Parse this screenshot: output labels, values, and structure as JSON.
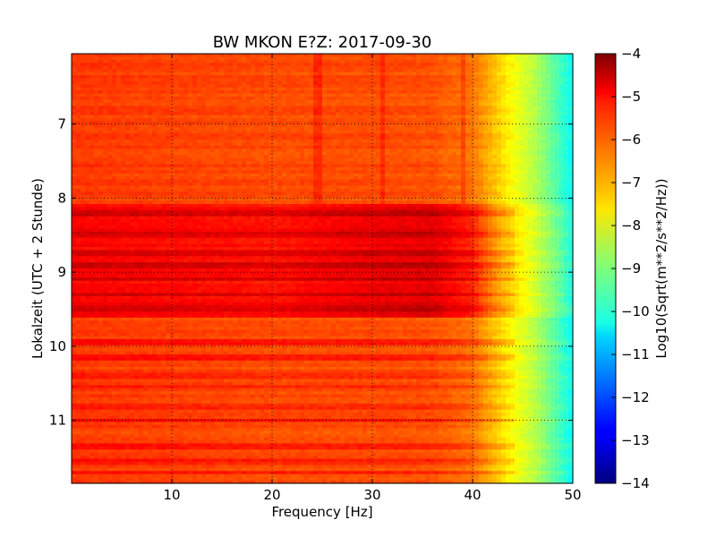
{
  "chart_data": {
    "type": "heatmap",
    "title": "BW MKON E?Z: 2017-09-30",
    "xlabel": "Frequency [Hz]",
    "ylabel": "Lokalzeit (UTC + 2 Stunde)",
    "xlim": [
      0,
      50
    ],
    "ylim": [
      6.05,
      11.85
    ],
    "y_inverted": true,
    "x_ticks": [
      10,
      20,
      30,
      40,
      50
    ],
    "x_tick_labels": [
      "10",
      "20",
      "30",
      "40",
      "50"
    ],
    "y_ticks": [
      7,
      8,
      9,
      10,
      11
    ],
    "y_tick_labels": [
      "7",
      "8",
      "9",
      "10",
      "11"
    ],
    "grid": true,
    "colormap": "jet",
    "colorbar": {
      "label": "Log10(Sqrt(m**2/s**2/Hz))",
      "range": [
        -14,
        -4
      ],
      "ticks": [
        -4,
        -5,
        -6,
        -7,
        -8,
        -9,
        -10,
        -11,
        -12,
        -13,
        -14
      ],
      "tick_labels": [
        "−4",
        "−5",
        "−6",
        "−7",
        "−8",
        "−9",
        "−10",
        "−11",
        "−12",
        "−13",
        "−14"
      ]
    },
    "frequency_profile": {
      "frequency_hz": [
        0,
        5,
        10,
        20,
        30,
        36,
        40,
        42,
        44,
        46,
        48,
        50
      ],
      "level_quiet": [
        -5.8,
        -5.85,
        -5.9,
        -6.0,
        -6.0,
        -6.05,
        -6.4,
        -7.1,
        -7.8,
        -8.4,
        -9.3,
        -10.2
      ],
      "level_active": [
        -5.2,
        -5.25,
        -5.3,
        -5.4,
        -5.1,
        -5.0,
        -5.6,
        -6.6,
        -7.4,
        -8.1,
        -9.0,
        -10.0
      ]
    },
    "active_period": {
      "start": 8.1,
      "end": 9.6
    },
    "strong_rows": [
      8.2,
      8.5,
      8.75,
      8.9,
      9.1,
      9.3,
      9.5,
      9.95,
      10.15,
      10.4,
      10.55,
      10.8,
      11.0,
      11.35,
      11.55,
      11.7
    ],
    "narrowband_lines_hz": [
      24.5,
      31.0,
      39.0
    ]
  }
}
